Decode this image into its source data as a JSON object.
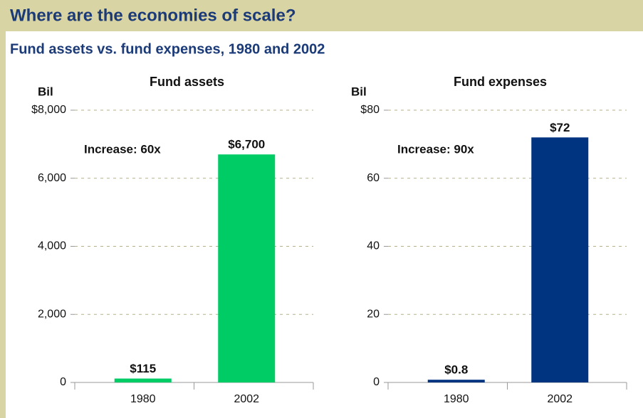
{
  "header": {
    "title": "Where are the economies of scale?",
    "subtitle": "Fund assets vs. fund expenses, 1980 and 2002"
  },
  "chart_data": [
    {
      "type": "bar",
      "title": "Fund assets",
      "y_label": "Bil",
      "annotation": "Increase: 60x",
      "categories": [
        "1980",
        "2002"
      ],
      "values": [
        115,
        6700
      ],
      "value_labels": [
        "$115",
        "$6,700"
      ],
      "color": "#00cc66",
      "ylim": [
        0,
        8000
      ],
      "yticks": [
        0,
        {
          "value": 2000,
          "label": "2,000"
        },
        {
          "value": 4000,
          "label": "4,000"
        },
        {
          "value": 6000,
          "label": "6,000"
        },
        {
          "value": 8000,
          "label": "$8,000"
        }
      ],
      "grid": true
    },
    {
      "type": "bar",
      "title": "Fund expenses",
      "y_label": "Bil",
      "annotation": "Increase: 90x",
      "categories": [
        "1980",
        "2002"
      ],
      "values": [
        0.8,
        72
      ],
      "value_labels": [
        "$0.8",
        "$72"
      ],
      "color": "#003380",
      "ylim": [
        0,
        80
      ],
      "yticks": [
        0,
        20,
        40,
        60,
        {
          "value": 80,
          "label": "$80"
        }
      ],
      "grid": true
    }
  ]
}
